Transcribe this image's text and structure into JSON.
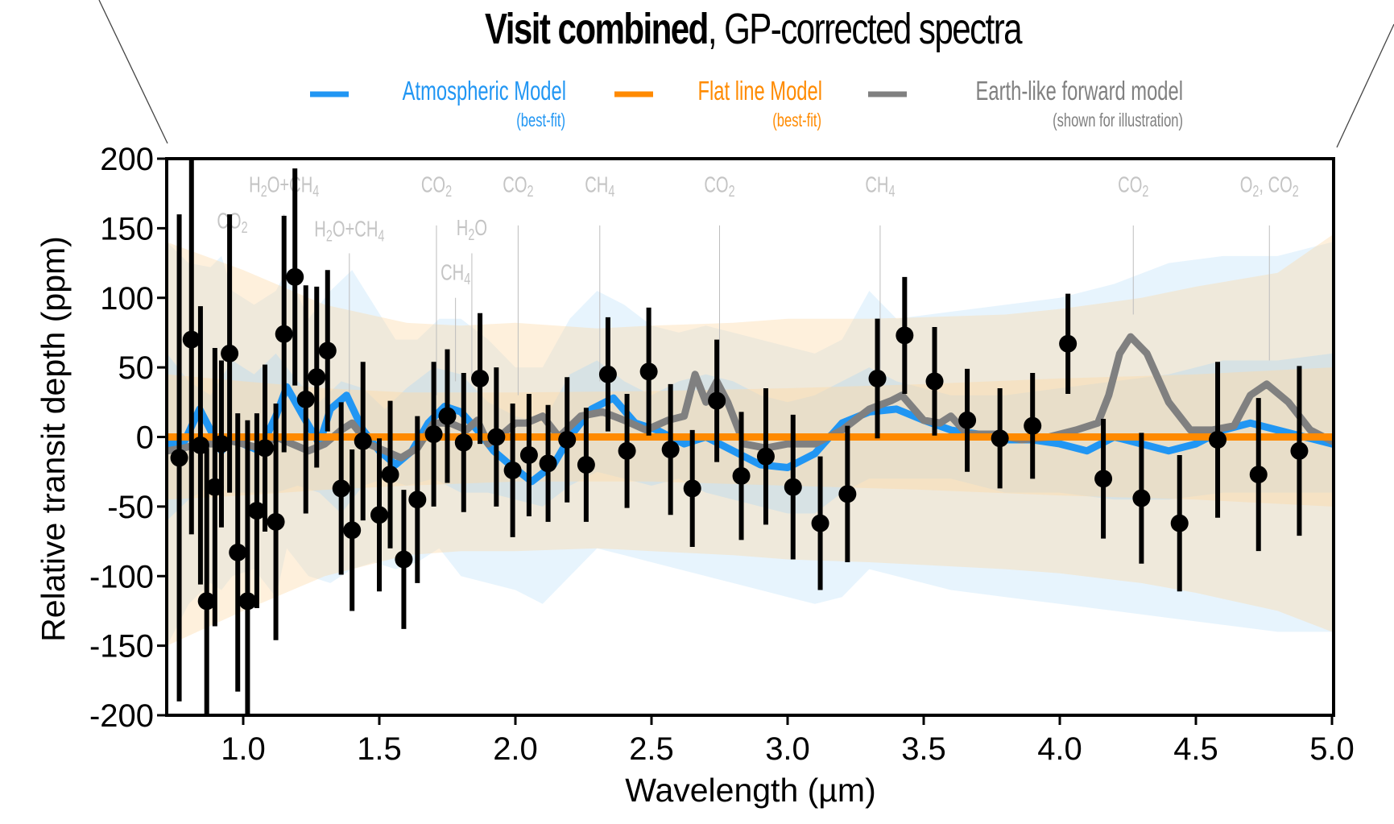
{
  "chart_data": {
    "type": "scatter",
    "title": {
      "bold_part": "Visit combined",
      "rest": ", GP-corrected spectra"
    },
    "xlabel": "Wavelength (µm)",
    "ylabel": "Relative transit depth (ppm)",
    "xlim": [
      0.72,
      5.0
    ],
    "ylim": [
      -200,
      200
    ],
    "xticks": [
      1.0,
      1.5,
      2.0,
      2.5,
      3.0,
      3.5,
      4.0,
      4.5,
      5.0
    ],
    "xtick_labels": [
      "1.0",
      "1.5",
      "2.0",
      "2.5",
      "3.0",
      "3.5",
      "4.0",
      "4.5",
      "5.0"
    ],
    "yticks": [
      200,
      150,
      100,
      50,
      0,
      -50,
      -100,
      -150,
      -200
    ],
    "ytick_labels": [
      "200",
      "150",
      "100",
      "50",
      "0",
      "-50",
      "-100",
      "-150",
      "-200"
    ],
    "grid": false,
    "legend": {
      "placement": "top",
      "entries": [
        {
          "name": "Atmospheric Model",
          "sub": "(best-fit)",
          "color": "#2196f3"
        },
        {
          "name": "Flat line Model",
          "sub": "(best-fit)",
          "color": "#ff8a00"
        },
        {
          "name": "Earth-like forward model",
          "sub": "(shown for illustration)",
          "color": "#808080"
        }
      ]
    },
    "colors": {
      "atmospheric": "#2196f3",
      "atmospheric_band": "#9fd4f7",
      "flat": "#ff8a00",
      "flat_band": "#fcd9a8",
      "earth": "#808080",
      "data": "#000000",
      "annotation": "#c4c4c4"
    },
    "data_points": {
      "x": [
        0.765,
        0.81,
        0.843,
        0.866,
        0.896,
        0.92,
        0.95,
        0.98,
        1.016,
        1.05,
        1.08,
        1.12,
        1.15,
        1.19,
        1.23,
        1.27,
        1.31,
        1.36,
        1.4,
        1.44,
        1.5,
        1.54,
        1.59,
        1.64,
        1.7,
        1.75,
        1.81,
        1.87,
        1.93,
        1.99,
        2.05,
        2.12,
        2.19,
        2.26,
        2.34,
        2.41,
        2.49,
        2.57,
        2.65,
        2.74,
        2.83,
        2.92,
        3.02,
        3.12,
        3.22,
        3.33,
        3.43,
        3.54,
        3.66,
        3.78,
        3.9,
        4.03,
        4.16,
        4.3,
        4.44,
        4.58,
        4.73,
        4.88
      ],
      "y": [
        -15,
        70,
        -6,
        -118,
        -36,
        -5,
        60,
        -83,
        -118,
        -53,
        -8,
        -61,
        74,
        115,
        27,
        43,
        62,
        -37,
        -67,
        -3,
        -56,
        -27,
        -88,
        -45,
        2,
        15,
        -4,
        42,
        0,
        -24,
        -13,
        -19,
        -2,
        -20,
        45,
        -10,
        47,
        -9,
        -37,
        26,
        -28,
        -14,
        -36,
        -62,
        -41,
        42,
        73,
        40,
        12,
        -1,
        8,
        67,
        -30,
        -44,
        -62,
        -2,
        -27,
        -10
      ],
      "yerr": [
        175,
        140,
        100,
        110,
        100,
        60,
        100,
        100,
        130,
        70,
        60,
        85,
        85,
        78,
        82,
        65,
        58,
        62,
        58,
        57,
        55,
        53,
        50,
        60,
        52,
        48,
        50,
        47,
        50,
        48,
        44,
        42,
        45,
        41,
        41,
        41,
        46,
        47,
        42,
        44,
        46,
        49,
        52,
        48,
        49,
        43,
        42,
        39,
        37,
        36,
        38,
        36,
        43,
        47,
        49,
        56,
        55,
        61
      ]
    },
    "series": [
      {
        "name": "Atmospheric Model",
        "x": [
          0.72,
          0.78,
          0.84,
          0.88,
          0.92,
          0.96,
          1.0,
          1.06,
          1.12,
          1.16,
          1.22,
          1.28,
          1.32,
          1.38,
          1.44,
          1.5,
          1.56,
          1.62,
          1.68,
          1.74,
          1.8,
          1.86,
          1.92,
          1.98,
          2.06,
          2.14,
          2.2,
          2.28,
          2.36,
          2.44,
          2.52,
          2.62,
          2.7,
          2.8,
          2.9,
          3.0,
          3.1,
          3.2,
          3.3,
          3.4,
          3.5,
          3.6,
          3.7,
          3.8,
          3.9,
          4.0,
          4.1,
          4.2,
          4.3,
          4.4,
          4.5,
          4.6,
          4.7,
          4.8,
          4.9,
          5.0
        ],
        "y": [
          -5,
          -5,
          20,
          5,
          -10,
          0,
          -5,
          -10,
          15,
          36,
          15,
          -5,
          20,
          30,
          5,
          -10,
          -20,
          -10,
          10,
          22,
          18,
          5,
          -10,
          -20,
          -32,
          -20,
          0,
          20,
          28,
          10,
          5,
          -5,
          0,
          -10,
          -20,
          -22,
          -12,
          10,
          18,
          20,
          12,
          5,
          2,
          -2,
          -2,
          -5,
          -10,
          0,
          -5,
          -10,
          -5,
          5,
          10,
          5,
          0,
          -5
        ]
      },
      {
        "name": "Flat line Model",
        "x": [
          0.72,
          5.0
        ],
        "y": [
          0,
          0
        ]
      },
      {
        "name": "Earth-like forward model",
        "x": [
          0.72,
          0.78,
          0.84,
          0.9,
          0.96,
          1.0,
          1.06,
          1.12,
          1.18,
          1.24,
          1.3,
          1.36,
          1.4,
          1.46,
          1.52,
          1.58,
          1.64,
          1.7,
          1.76,
          1.82,
          1.86,
          1.9,
          1.94,
          2.0,
          2.04,
          2.1,
          2.16,
          2.24,
          2.32,
          2.4,
          2.48,
          2.56,
          2.62,
          2.66,
          2.7,
          2.74,
          2.78,
          2.84,
          2.92,
          3.0,
          3.1,
          3.2,
          3.3,
          3.38,
          3.42,
          3.5,
          3.56,
          3.6,
          3.66,
          3.76,
          3.86,
          3.96,
          4.06,
          4.14,
          4.18,
          4.22,
          4.26,
          4.32,
          4.4,
          4.48,
          4.56,
          4.64,
          4.7,
          4.76,
          4.84,
          4.92,
          5.0
        ],
        "y": [
          -10,
          -8,
          -5,
          -5,
          -3,
          -5,
          -8,
          0,
          -5,
          -10,
          -5,
          5,
          10,
          -5,
          -10,
          -15,
          -8,
          10,
          10,
          5,
          12,
          -5,
          0,
          10,
          10,
          15,
          0,
          15,
          18,
          12,
          5,
          12,
          15,
          45,
          25,
          40,
          25,
          -5,
          -8,
          -5,
          -5,
          5,
          20,
          26,
          30,
          12,
          10,
          15,
          2,
          2,
          -2,
          0,
          5,
          10,
          30,
          60,
          72,
          60,
          25,
          5,
          5,
          8,
          30,
          38,
          25,
          5,
          -3
        ]
      }
    ],
    "bands": [
      {
        "name": "Atmospheric Model 1-sigma",
        "x": [
          0.72,
          0.8,
          0.88,
          0.96,
          1.04,
          1.12,
          1.2,
          1.28,
          1.36,
          1.44,
          1.52,
          1.6,
          1.7,
          1.8,
          1.9,
          2.0,
          2.1,
          2.2,
          2.3,
          2.4,
          2.5,
          2.6,
          2.7,
          2.8,
          2.9,
          3.0,
          3.1,
          3.2,
          3.3,
          3.4,
          3.6,
          3.8,
          4.0,
          4.2,
          4.4,
          4.6,
          4.8,
          5.0
        ],
        "upper": [
          60,
          40,
          30,
          55,
          45,
          60,
          40,
          25,
          40,
          35,
          20,
          35,
          50,
          45,
          25,
          15,
          10,
          45,
          55,
          40,
          30,
          40,
          45,
          40,
          30,
          25,
          30,
          40,
          50,
          40,
          30,
          30,
          35,
          40,
          45,
          55,
          55,
          60
        ],
        "lower": [
          -60,
          -45,
          -35,
          -40,
          -40,
          -40,
          -35,
          -40,
          -55,
          -35,
          -30,
          -35,
          -30,
          -40,
          -40,
          -45,
          -50,
          -35,
          -25,
          -30,
          -35,
          -30,
          -40,
          -45,
          -50,
          -55,
          -55,
          -40,
          -30,
          -30,
          -30,
          -40,
          -40,
          -45,
          -45,
          -40,
          -40,
          -40
        ]
      },
      {
        "name": "Atmospheric Model 3-sigma",
        "x": [
          0.72,
          0.8,
          0.88,
          0.92,
          0.96,
          1.04,
          1.12,
          1.16,
          1.24,
          1.32,
          1.4,
          1.48,
          1.56,
          1.64,
          1.72,
          1.8,
          1.9,
          2.0,
          2.1,
          2.2,
          2.3,
          2.4,
          2.5,
          2.6,
          2.7,
          2.8,
          2.9,
          3.0,
          3.1,
          3.2,
          3.3,
          3.4,
          3.6,
          3.8,
          4.0,
          4.2,
          4.4,
          4.6,
          4.8,
          5.0
        ],
        "upper": [
          140,
          125,
          122,
          130,
          105,
          95,
          105,
          120,
          85,
          105,
          120,
          95,
          70,
          70,
          85,
          85,
          70,
          50,
          50,
          85,
          105,
          95,
          80,
          75,
          80,
          75,
          70,
          65,
          60,
          70,
          105,
          85,
          90,
          95,
          100,
          110,
          125,
          130,
          130,
          140
        ],
        "lower": [
          -150,
          -120,
          -105,
          -110,
          -100,
          -95,
          -115,
          -80,
          -100,
          -105,
          -95,
          -90,
          -95,
          -90,
          -80,
          -100,
          -105,
          -110,
          -120,
          -100,
          -80,
          -85,
          -90,
          -95,
          -100,
          -105,
          -110,
          -115,
          -120,
          -115,
          -95,
          -100,
          -110,
          -115,
          -120,
          -125,
          -130,
          -135,
          -140,
          -140
        ]
      },
      {
        "name": "Flat line Model 1-sigma",
        "x": [
          0.72,
          1.0,
          1.3,
          1.6,
          2.0,
          2.5,
          3.0,
          3.5,
          4.0,
          4.5,
          5.0
        ],
        "upper": [
          45,
          40,
          35,
          32,
          32,
          33,
          35,
          38,
          42,
          45,
          50
        ],
        "lower": [
          -45,
          -42,
          -38,
          -35,
          -32,
          -32,
          -35,
          -38,
          -42,
          -45,
          -50
        ]
      },
      {
        "name": "Flat line Model 3-sigma",
        "x": [
          0.72,
          1.0,
          1.3,
          1.6,
          1.8,
          2.0,
          2.3,
          2.5,
          2.8,
          3.0,
          3.3,
          3.5,
          3.8,
          4.0,
          4.3,
          4.5,
          4.8,
          5.0
        ],
        "upper": [
          140,
          120,
          95,
          82,
          80,
          82,
          78,
          80,
          82,
          85,
          85,
          86,
          88,
          92,
          100,
          108,
          118,
          145
        ],
        "lower": [
          -150,
          -125,
          -100,
          -85,
          -82,
          -82,
          -80,
          -82,
          -85,
          -88,
          -90,
          -92,
          -95,
          -98,
          -105,
          -112,
          -125,
          -140
        ]
      }
    ],
    "annotations": [
      {
        "label": "CO₂",
        "parts": [
          [
            "CO",
            ""
          ],
          [
            "2",
            "sub"
          ]
        ],
        "x": 0.96,
        "y_label": 150,
        "line_top": null,
        "line_bottom": null
      },
      {
        "label": "H₂O+CH₄",
        "parts": [
          [
            "H",
            ""
          ],
          [
            "2",
            "sub"
          ],
          [
            "O+CH",
            ""
          ],
          [
            "4",
            "sub"
          ]
        ],
        "x": 1.15,
        "y_label": 176,
        "line_top": 160,
        "line_bottom": 0
      },
      {
        "label": "H₂O+CH₄",
        "parts": [
          [
            "H",
            ""
          ],
          [
            "2",
            "sub"
          ],
          [
            "O+CH",
            ""
          ],
          [
            "4",
            "sub"
          ]
        ],
        "x": 1.39,
        "y_label": 144,
        "line_top": 132,
        "line_bottom": 30
      },
      {
        "label": "CO₂",
        "parts": [
          [
            "CO",
            ""
          ],
          [
            "2",
            "sub"
          ]
        ],
        "x": 1.71,
        "y_label": 176,
        "line_top": 152,
        "line_bottom": 30
      },
      {
        "label": "CH₄",
        "parts": [
          [
            "CH",
            ""
          ],
          [
            "4",
            "sub"
          ]
        ],
        "x": 1.78,
        "y_label": 113,
        "line_top": 100,
        "line_bottom": 40
      },
      {
        "label": "H₂O",
        "parts": [
          [
            "H",
            ""
          ],
          [
            "2",
            "sub"
          ],
          [
            "O",
            ""
          ]
        ],
        "x": 1.84,
        "y_label": 145,
        "line_top": 132,
        "line_bottom": 40
      },
      {
        "label": "CO₂",
        "parts": [
          [
            "CO",
            ""
          ],
          [
            "2",
            "sub"
          ]
        ],
        "x": 2.01,
        "y_label": 176,
        "line_top": 152,
        "line_bottom": 30
      },
      {
        "label": "CH₄",
        "parts": [
          [
            "CH",
            ""
          ],
          [
            "4",
            "sub"
          ]
        ],
        "x": 2.31,
        "y_label": 176,
        "line_top": 152,
        "line_bottom": 40
      },
      {
        "label": "CO₂",
        "parts": [
          [
            "CO",
            ""
          ],
          [
            "2",
            "sub"
          ]
        ],
        "x": 2.75,
        "y_label": 176,
        "line_top": 152,
        "line_bottom": 40
      },
      {
        "label": "CH₄",
        "parts": [
          [
            "CH",
            ""
          ],
          [
            "4",
            "sub"
          ]
        ],
        "x": 3.34,
        "y_label": 176,
        "line_top": 152,
        "line_bottom": 35
      },
      {
        "label": "CO₂",
        "parts": [
          [
            "CO",
            ""
          ],
          [
            "2",
            "sub"
          ]
        ],
        "x": 4.27,
        "y_label": 176,
        "line_top": 152,
        "line_bottom": 88
      },
      {
        "label": "O₂, CO₂",
        "parts": [
          [
            "O",
            ""
          ],
          [
            "2",
            "sub"
          ],
          [
            ", CO",
            ""
          ],
          [
            "2",
            "sub"
          ]
        ],
        "x": 4.77,
        "y_label": 176,
        "line_top": 152,
        "line_bottom": 55
      }
    ]
  }
}
